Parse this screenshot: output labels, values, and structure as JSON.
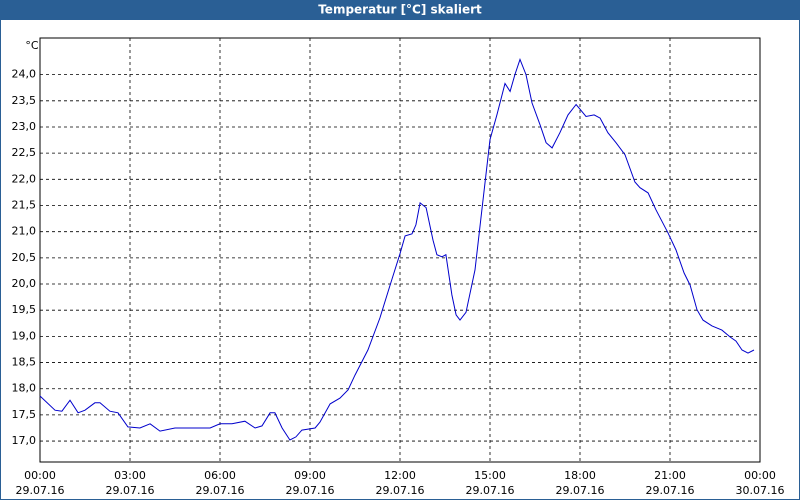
{
  "chart_data": {
    "type": "line",
    "title": "Temperatur [°C] skaliert",
    "ylabel": "°C",
    "xlim": [
      0,
      24
    ],
    "ylim": [
      16.6,
      24.7
    ],
    "grid": true,
    "xticks": [
      {
        "value": 0,
        "label": "00:00"
      },
      {
        "value": 3,
        "label": "03:00"
      },
      {
        "value": 6,
        "label": "06:00"
      },
      {
        "value": 9,
        "label": "09:00"
      },
      {
        "value": 12,
        "label": "12:00"
      },
      {
        "value": 15,
        "label": "15:00"
      },
      {
        "value": 18,
        "label": "18:00"
      },
      {
        "value": 21,
        "label": "21:00"
      },
      {
        "value": 24,
        "label": "00:00"
      }
    ],
    "xtick_dates": [
      "29.07.16",
      "29.07.16",
      "29.07.16",
      "29.07.16",
      "29.07.16",
      "29.07.16",
      "29.07.16",
      "29.07.16",
      "30.07.16"
    ],
    "yticks": [
      {
        "value": 17,
        "label": "17,0"
      },
      {
        "value": 17.5,
        "label": "17,5"
      },
      {
        "value": 18,
        "label": "18,0"
      },
      {
        "value": 18.5,
        "label": "18,5"
      },
      {
        "value": 19,
        "label": "19,0"
      },
      {
        "value": 19.5,
        "label": "19,5"
      },
      {
        "value": 20,
        "label": "20,0"
      },
      {
        "value": 20.5,
        "label": "20,5"
      },
      {
        "value": 21,
        "label": "21,0"
      },
      {
        "value": 21.5,
        "label": "21,5"
      },
      {
        "value": 22,
        "label": "22,0"
      },
      {
        "value": 22.5,
        "label": "22,5"
      },
      {
        "value": 23,
        "label": "23,0"
      },
      {
        "value": 23.5,
        "label": "23,5"
      },
      {
        "value": 24,
        "label": "24,0"
      }
    ],
    "x": [
      0,
      0.5,
      0.73,
      1,
      1.27,
      1.5,
      1.83,
      2,
      2.33,
      2.6,
      2.93,
      3.33,
      3.67,
      4,
      4.5,
      5,
      5.67,
      6,
      6.4,
      6.83,
      7.17,
      7.4,
      7.67,
      7.83,
      8.07,
      8.33,
      8.53,
      8.73,
      9.17,
      9.33,
      9.67,
      10,
      10.27,
      10.5,
      10.93,
      11.33,
      11.67,
      12,
      12.17,
      12.4,
      12.53,
      12.67,
      12.87,
      13.1,
      13.23,
      13.4,
      13.53,
      13.73,
      13.87,
      14,
      14.2,
      14.5,
      14.73,
      15,
      15.23,
      15.5,
      15.67,
      15.83,
      16,
      16.2,
      16.4,
      16.67,
      16.87,
      17.07,
      17.33,
      17.6,
      17.87,
      18,
      18.2,
      18.47,
      18.67,
      18.93,
      19.2,
      19.5,
      19.83,
      20,
      20.27,
      20.53,
      20.93,
      21.2,
      21.47,
      21.67,
      21.9,
      22.1,
      22.4,
      22.73,
      23,
      23.2,
      23.4,
      23.6,
      23.8
    ],
    "series": [
      {
        "color": "#0000cc",
        "values": [
          17.86,
          17.59,
          17.57,
          17.78,
          17.54,
          17.59,
          17.73,
          17.73,
          17.57,
          17.54,
          17.27,
          17.25,
          17.33,
          17.19,
          17.25,
          17.25,
          17.25,
          17.33,
          17.33,
          17.38,
          17.25,
          17.29,
          17.54,
          17.54,
          17.25,
          17.02,
          17.08,
          17.21,
          17.25,
          17.36,
          17.71,
          17.82,
          17.98,
          18.26,
          18.74,
          19.35,
          19.98,
          20.58,
          20.92,
          20.96,
          21.13,
          21.55,
          21.46,
          20.84,
          20.56,
          20.52,
          20.56,
          19.79,
          19.41,
          19.31,
          19.46,
          20.27,
          21.42,
          22.76,
          23.23,
          23.83,
          23.68,
          24.0,
          24.29,
          24.0,
          23.46,
          23.04,
          22.7,
          22.6,
          22.89,
          23.23,
          23.43,
          23.34,
          23.2,
          23.23,
          23.17,
          22.89,
          22.7,
          22.47,
          21.95,
          21.84,
          21.74,
          21.42,
          20.98,
          20.65,
          20.21,
          19.98,
          19.51,
          19.31,
          19.2,
          19.12,
          18.99,
          18.91,
          18.74,
          18.68,
          18.74
        ]
      }
    ]
  }
}
